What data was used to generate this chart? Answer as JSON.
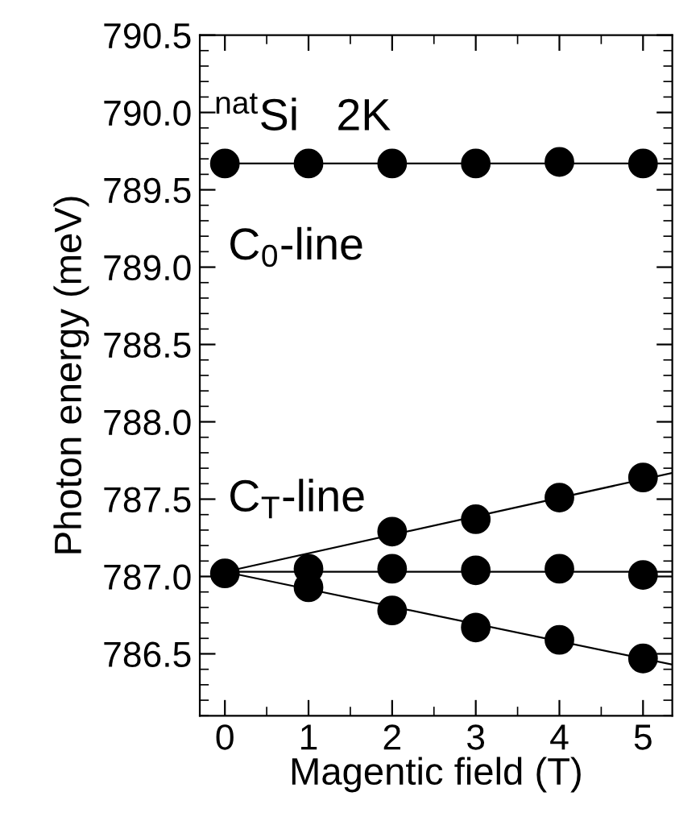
{
  "chart_data": {
    "type": "scatter",
    "xlabel": "Magentic field (T)",
    "ylabel": "Photon energy (meV)",
    "xlim": [
      -0.3,
      5.35
    ],
    "xticks": [
      0,
      1,
      2,
      3,
      4,
      5
    ],
    "ylim": [
      786.1,
      790.5
    ],
    "yticks": [
      {
        "value": 786.5,
        "label": "786.5"
      },
      {
        "value": 787.0,
        "label": "787.0"
      },
      {
        "value": 787.5,
        "label": "787.5"
      },
      {
        "value": 788.0,
        "label": "788.0"
      },
      {
        "value": 788.5,
        "label": "788.5"
      },
      {
        "value": 789.0,
        "label": "789.0"
      },
      {
        "value": 789.5,
        "label": "789.5"
      },
      {
        "value": 790.0,
        "label": "790.0"
      },
      {
        "value": 790.5,
        "label": "790.5"
      }
    ],
    "marker": "circle",
    "grid": false,
    "legend": false,
    "annotations": [
      "$^{nat}$Si   2K",
      "C$_{0}$-line",
      "C$_{T}$-line"
    ],
    "series": [
      {
        "type": "line",
        "color": "#000000",
        "x": [
          0,
          5.35
        ],
        "values": [
          789.67,
          789.67
        ],
        "marker": "none"
      },
      {
        "type": "line",
        "color": "#000000",
        "x": [
          0,
          5.35
        ],
        "values": [
          787.03,
          787.67
        ],
        "marker": "none"
      },
      {
        "type": "line",
        "color": "#000000",
        "x": [
          0,
          5.35
        ],
        "values": [
          787.03,
          787.03
        ],
        "marker": "none"
      },
      {
        "type": "line",
        "color": "#000000",
        "x": [
          0,
          5.35
        ],
        "values": [
          787.03,
          786.43
        ],
        "marker": "none"
      },
      {
        "color": "#000000",
        "x": [
          0,
          1,
          2,
          3,
          4,
          5
        ],
        "values": [
          789.67,
          789.67,
          789.67,
          789.67,
          789.68,
          789.67
        ]
      },
      {
        "color": "#000000",
        "x": [
          2,
          3,
          4,
          5
        ],
        "values": [
          787.29,
          787.37,
          787.51,
          787.64
        ]
      },
      {
        "color": "#000000",
        "x": [
          0,
          1,
          2,
          3,
          4,
          5
        ],
        "values": [
          787.02,
          787.05,
          787.05,
          787.04,
          787.05,
          787.01
        ]
      },
      {
        "color": "#000000",
        "x": [
          1,
          2,
          3,
          4,
          5
        ],
        "values": [
          786.93,
          786.78,
          786.67,
          786.59,
          786.47
        ]
      }
    ]
  }
}
